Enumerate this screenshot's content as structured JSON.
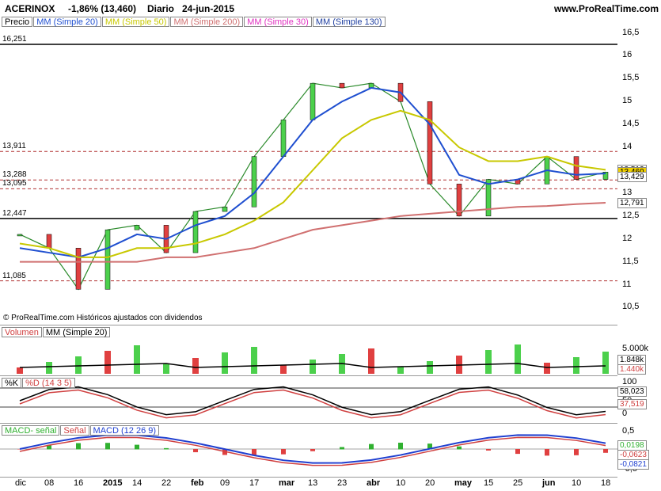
{
  "header": {
    "symbol": "ACERINOX",
    "change": "-1,86% (13,460)",
    "period": "Diario",
    "date": "24-jun-2015",
    "site": "www.ProRealTime.com"
  },
  "price_legend": [
    {
      "text": "Precio",
      "color": "#000000"
    },
    {
      "text": "MM (Simple 20)",
      "color": "#1f4fd0"
    },
    {
      "text": "MM (Simple 50)",
      "color": "#c8c800"
    },
    {
      "text": "MM (Simple 200)",
      "color": "#d07070"
    },
    {
      "text": "MM (Simple 30)",
      "color": "#e030c0"
    },
    {
      "text": "MM (Simple 130)",
      "color": "#1f3fa0"
    }
  ],
  "copyright": "© ProRealTime.com  Históricos ajustados con dividendos",
  "levels": [
    {
      "label": "16,251",
      "v": 16.251,
      "style": "solid"
    },
    {
      "label": "13,911",
      "v": 13.911,
      "style": "dash"
    },
    {
      "label": "13,288",
      "v": 13.288,
      "style": "dash"
    },
    {
      "label": "13,095",
      "v": 13.095,
      "style": "dash"
    },
    {
      "label": "12,447",
      "v": 12.447,
      "style": "solid"
    },
    {
      "label": "11,085",
      "v": 11.085,
      "style": "dash"
    }
  ],
  "price_axis": [
    "16,5",
    "16",
    "15,5",
    "15",
    "14,5",
    "14",
    "13,5",
    "13",
    "12,5",
    "12",
    "11,5",
    "11",
    "10,5"
  ],
  "price_tags": [
    {
      "text": "13,512",
      "v": 13.512,
      "bg": "#ffffff"
    },
    {
      "text": "13,460",
      "v": 13.46,
      "bg": "#f0d000"
    },
    {
      "text": "13,429",
      "v": 13.429,
      "bg": "#ffffff"
    },
    {
      "text": "12,791",
      "v": 12.791,
      "bg": "#ffffff"
    }
  ],
  "volume": {
    "legend": [
      "Volumen",
      "MM (Simple 20)"
    ],
    "axis": [
      "5.000k"
    ],
    "tags": [
      "1.848k",
      "1.440k"
    ]
  },
  "stoch": {
    "legend": [
      "%K",
      "%D (14 3 5)"
    ],
    "axis": [
      "100",
      "50",
      "0"
    ],
    "tags": [
      "58,023",
      "37,519"
    ]
  },
  "macd": {
    "legend": [
      "MACD- señal",
      "Señal",
      "MACD (12 26 9)"
    ],
    "axis": [
      "0,5",
      "0",
      "-0,5"
    ],
    "tags": [
      "0,0198",
      "-0,0623",
      "-0,0821"
    ]
  },
  "x_labels": [
    "dic",
    "08",
    "16",
    "2015",
    "14",
    "22",
    "feb",
    "09",
    "17",
    "mar",
    "13",
    "23",
    "abr",
    "10",
    "20",
    "may",
    "15",
    "25",
    "jun",
    "10",
    "18"
  ],
  "chart_data": {
    "type": "line",
    "title": "ACERINOX -1,86% (13,460) Diario 24-jun-2015",
    "ylim": [
      10.3,
      16.7
    ],
    "x": [
      "dic",
      "08",
      "16",
      "2015",
      "14",
      "22",
      "feb",
      "09",
      "17",
      "mar",
      "13",
      "23",
      "abr",
      "10",
      "20",
      "may",
      "15",
      "25",
      "jun",
      "10",
      "18"
    ],
    "series": [
      {
        "name": "Precio",
        "values": [
          12.1,
          11.8,
          10.9,
          12.2,
          12.3,
          11.7,
          12.6,
          12.7,
          13.8,
          14.6,
          15.4,
          15.3,
          15.4,
          15.0,
          13.2,
          12.5,
          13.3,
          13.2,
          13.8,
          13.3,
          13.46
        ]
      },
      {
        "name": "MM (Simple 20)",
        "values": [
          11.8,
          11.7,
          11.6,
          11.8,
          12.1,
          12.0,
          12.3,
          12.5,
          13.0,
          13.8,
          14.6,
          15.0,
          15.3,
          15.2,
          14.5,
          13.4,
          13.2,
          13.3,
          13.5,
          13.4,
          13.43
        ]
      },
      {
        "name": "MM (Simple 50)",
        "values": [
          11.9,
          11.8,
          11.6,
          11.6,
          11.8,
          11.8,
          11.9,
          12.1,
          12.4,
          12.8,
          13.5,
          14.2,
          14.6,
          14.8,
          14.6,
          14.0,
          13.7,
          13.7,
          13.8,
          13.6,
          13.51
        ]
      },
      {
        "name": "MM (Simple 200)",
        "values": [
          11.5,
          11.5,
          11.5,
          11.5,
          11.5,
          11.6,
          11.6,
          11.7,
          11.8,
          12.0,
          12.2,
          12.3,
          12.4,
          12.5,
          12.55,
          12.6,
          12.65,
          12.7,
          12.72,
          12.76,
          12.79
        ]
      }
    ]
  }
}
